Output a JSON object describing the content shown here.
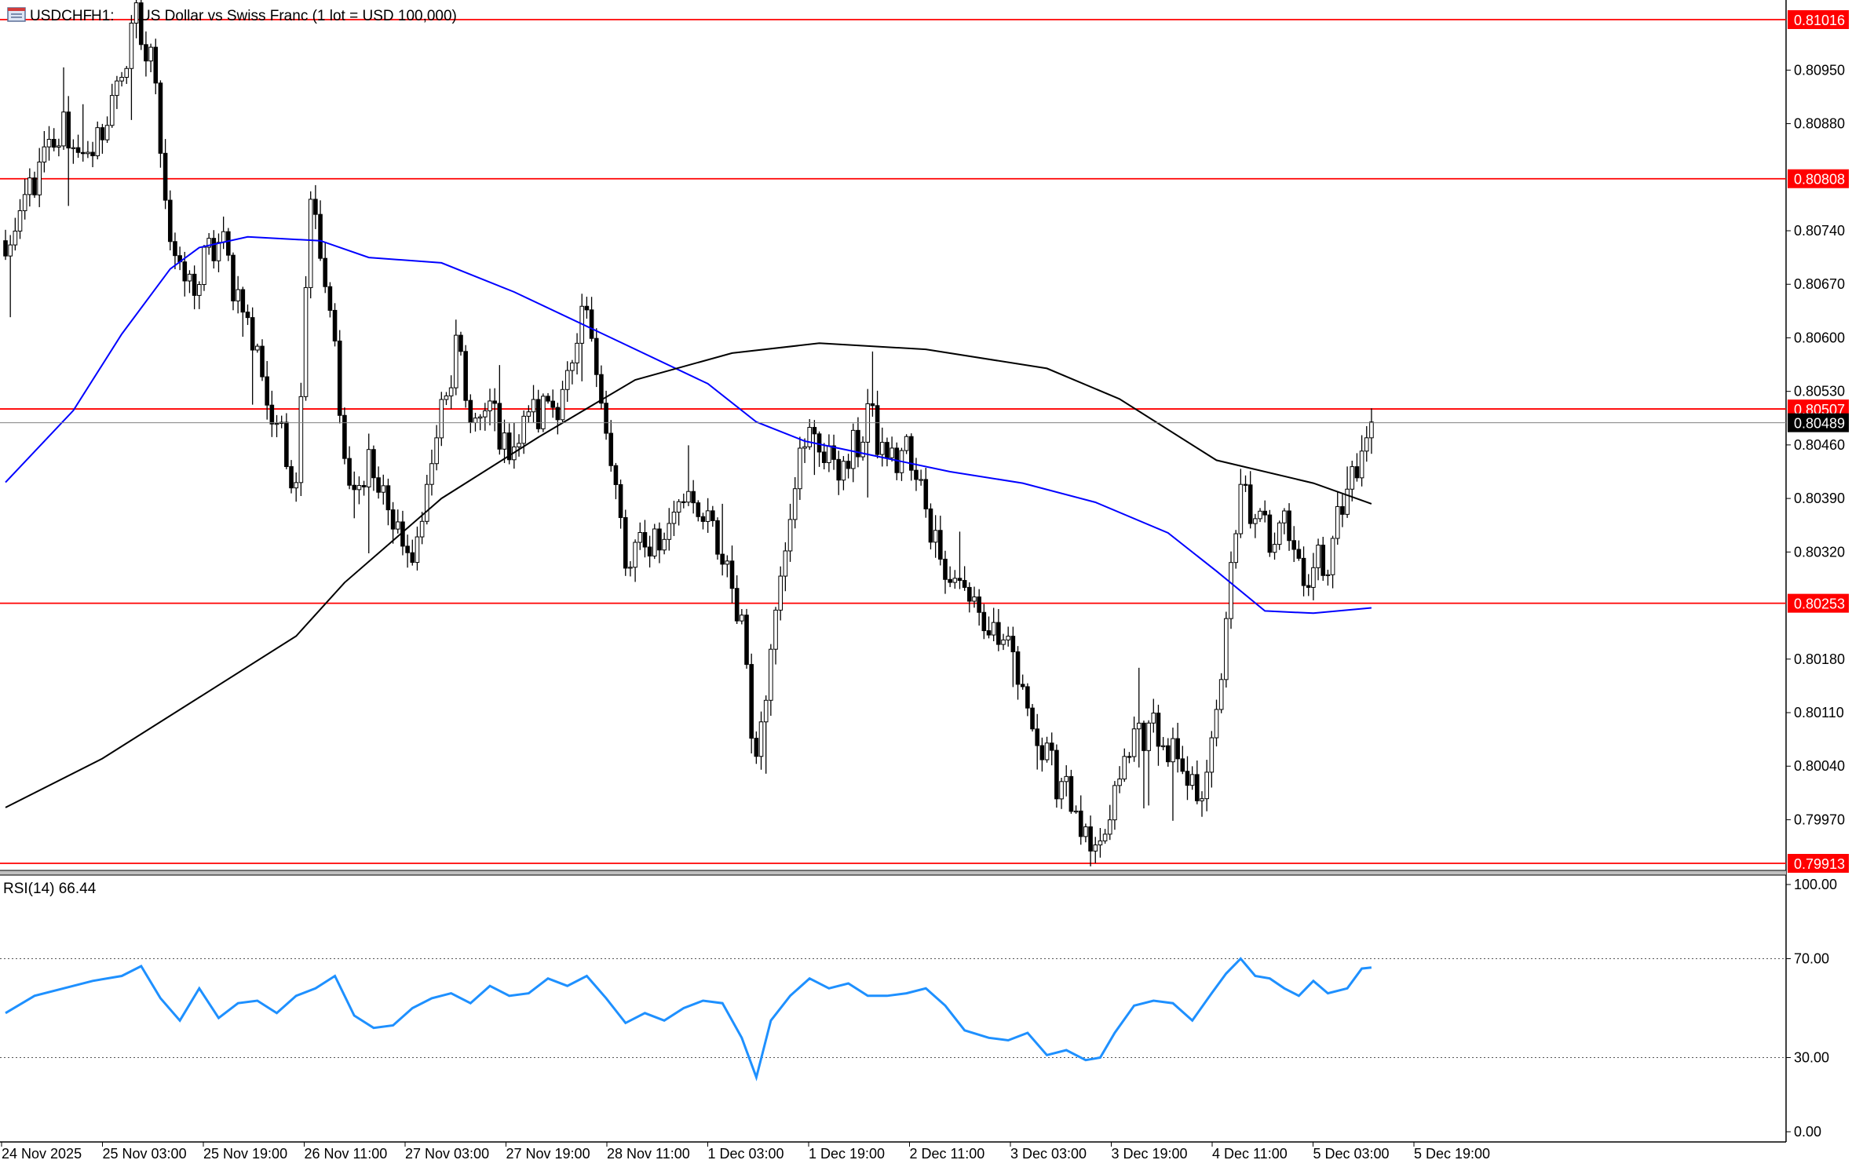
{
  "header": {
    "symbol": "USDCHF",
    "timeframe": "H1:",
    "description": "US Dollar vs Swiss Franc (1 lot = USD 100,000)"
  },
  "colors": {
    "background": "#ffffff",
    "bull_fill": "#ffffff",
    "bear_fill": "#000000",
    "candle_outline": "#000000",
    "ma_fast": "#0000ff",
    "ma_slow": "#000000",
    "level_line": "#ff0000",
    "level_label_bg": "#ff0000",
    "current_label_bg": "#000000",
    "rsi_line": "#1e90ff"
  },
  "icons": {
    "window": "chart-window-icon"
  },
  "chart_data": [
    {
      "type": "candlestick",
      "title": "USDCHF, H1:  US Dollar vs Swiss Franc (1 lot = USD 100,000)",
      "ylim": [
        0.7991,
        0.8103
      ],
      "y_ticks": [
        "0.80950",
        "0.80880",
        "0.80740",
        "0.80670",
        "0.80600",
        "0.80530",
        "0.80460",
        "0.80390",
        "0.80320",
        "0.80180",
        "0.80110",
        "0.80040",
        "0.79970"
      ],
      "x_ticks": [
        "24 Nov 2025",
        "25 Nov 03:00",
        "25 Nov 19:00",
        "26 Nov 11:00",
        "27 Nov 03:00",
        "27 Nov 19:00",
        "28 Nov 11:00",
        "1 Dec 03:00",
        "1 Dec 19:00",
        "2 Dec 11:00",
        "3 Dec 03:00",
        "3 Dec 19:00",
        "4 Dec 11:00",
        "5 Dec 03:00",
        "5 Dec 19:00"
      ],
      "horizontal_levels": [
        "0.81016",
        "0.80808",
        "0.80507",
        "0.80253",
        "0.79913"
      ],
      "current_price": "0.80489",
      "close_path": [
        [
          0,
          0.807
        ],
        [
          6,
          0.8081
        ],
        [
          12,
          0.8087
        ],
        [
          18,
          0.8083
        ],
        [
          24,
          0.8095
        ],
        [
          27,
          0.8101
        ],
        [
          31,
          0.8094
        ],
        [
          34,
          0.8072
        ],
        [
          38,
          0.8066
        ],
        [
          44,
          0.8073
        ],
        [
          48,
          0.8066
        ],
        [
          51,
          0.806
        ],
        [
          55,
          0.805
        ],
        [
          60,
          0.8041
        ],
        [
          63,
          0.808
        ],
        [
          67,
          0.8064
        ],
        [
          71,
          0.8038
        ],
        [
          75,
          0.8044
        ],
        [
          80,
          0.8036
        ],
        [
          84,
          0.803
        ],
        [
          88,
          0.8044
        ],
        [
          93,
          0.8058
        ],
        [
          97,
          0.8048
        ],
        [
          100,
          0.8051
        ],
        [
          104,
          0.8045
        ],
        [
          108,
          0.805
        ],
        [
          112,
          0.8051
        ],
        [
          116,
          0.8054
        ],
        [
          120,
          0.8063
        ],
        [
          124,
          0.8049
        ],
        [
          128,
          0.803
        ],
        [
          132,
          0.8033
        ],
        [
          136,
          0.8034
        ],
        [
          140,
          0.804
        ],
        [
          144,
          0.8038
        ],
        [
          148,
          0.803
        ],
        [
          152,
          0.8023
        ],
        [
          155,
          0.8004
        ],
        [
          158,
          0.802
        ],
        [
          162,
          0.8039
        ],
        [
          166,
          0.8048
        ],
        [
          170,
          0.8044
        ],
        [
          174,
          0.8043
        ],
        [
          178,
          0.805
        ],
        [
          182,
          0.8044
        ],
        [
          186,
          0.8045
        ],
        [
          190,
          0.8038
        ],
        [
          194,
          0.803
        ],
        [
          198,
          0.8027
        ],
        [
          203,
          0.8022
        ],
        [
          207,
          0.8019
        ],
        [
          211,
          0.8012
        ],
        [
          215,
          0.8004
        ],
        [
          219,
          0.8002
        ],
        [
          223,
          0.7993
        ],
        [
          226,
          0.7992
        ],
        [
          229,
          0.8
        ],
        [
          233,
          0.8008
        ],
        [
          237,
          0.8009
        ],
        [
          241,
          0.8005
        ],
        [
          245,
          0.8
        ],
        [
          249,
          0.8005
        ],
        [
          252,
          0.8023
        ],
        [
          255,
          0.804
        ],
        [
          258,
          0.8036
        ],
        [
          261,
          0.8034
        ],
        [
          264,
          0.8038
        ],
        [
          267,
          0.803
        ],
        [
          270,
          0.8029
        ],
        [
          273,
          0.8032
        ],
        [
          277,
          0.804
        ],
        [
          280,
          0.8045
        ],
        [
          282,
          0.8049
        ]
      ],
      "series": [
        {
          "name": "MA fast (blue)",
          "points": [
            [
              0,
              0.80411
            ],
            [
              14,
              0.80505
            ],
            [
              24,
              0.80605
            ],
            [
              34,
              0.8069
            ],
            [
              40,
              0.80718
            ],
            [
              50,
              0.80732
            ],
            [
              65,
              0.80727
            ],
            [
              75,
              0.80705
            ],
            [
              90,
              0.80698
            ],
            [
              105,
              0.8066
            ],
            [
              125,
              0.806
            ],
            [
              145,
              0.8054
            ],
            [
              155,
              0.8049
            ],
            [
              165,
              0.80465
            ],
            [
              180,
              0.80445
            ],
            [
              195,
              0.80425
            ],
            [
              210,
              0.8041
            ],
            [
              225,
              0.80385
            ],
            [
              240,
              0.80345
            ],
            [
              250,
              0.80295
            ],
            [
              260,
              0.80243
            ],
            [
              270,
              0.8024
            ],
            [
              282,
              0.80247
            ]
          ]
        },
        {
          "name": "MA slow (black)",
          "points": [
            [
              0,
              0.79986
            ],
            [
              20,
              0.8005
            ],
            [
              40,
              0.8013
            ],
            [
              60,
              0.8021
            ],
            [
              70,
              0.8028
            ],
            [
              90,
              0.8039
            ],
            [
              110,
              0.8047
            ],
            [
              130,
              0.80545
            ],
            [
              150,
              0.8058
            ],
            [
              168,
              0.80593
            ],
            [
              190,
              0.80585
            ],
            [
              215,
              0.8056
            ],
            [
              230,
              0.8052
            ],
            [
              250,
              0.8044
            ],
            [
              270,
              0.8041
            ],
            [
              282,
              0.80383
            ]
          ]
        }
      ]
    },
    {
      "type": "line",
      "title": "RSI(14) 66.44",
      "ylim": [
        0,
        100
      ],
      "y_ticks": [
        "100.00",
        "70.00",
        "30.00",
        "0.00"
      ],
      "levels": [
        70,
        30
      ],
      "series": [
        {
          "name": "",
          "points": [
            [
              0,
              48
            ],
            [
              6,
              55
            ],
            [
              12,
              58
            ],
            [
              18,
              61
            ],
            [
              24,
              63
            ],
            [
              28,
              67
            ],
            [
              32,
              54
            ],
            [
              36,
              45
            ],
            [
              40,
              58
            ],
            [
              44,
              46
            ],
            [
              48,
              52
            ],
            [
              52,
              53
            ],
            [
              56,
              48
            ],
            [
              60,
              55
            ],
            [
              64,
              58
            ],
            [
              68,
              63
            ],
            [
              72,
              47
            ],
            [
              76,
              42
            ],
            [
              80,
              43
            ],
            [
              84,
              50
            ],
            [
              88,
              54
            ],
            [
              92,
              56
            ],
            [
              96,
              52
            ],
            [
              100,
              59
            ],
            [
              104,
              55
            ],
            [
              108,
              56
            ],
            [
              112,
              62
            ],
            [
              116,
              59
            ],
            [
              120,
              63
            ],
            [
              124,
              54
            ],
            [
              128,
              44
            ],
            [
              132,
              48
            ],
            [
              136,
              45
            ],
            [
              140,
              50
            ],
            [
              144,
              53
            ],
            [
              148,
              52
            ],
            [
              152,
              38
            ],
            [
              155,
              22
            ],
            [
              158,
              45
            ],
            [
              162,
              55
            ],
            [
              166,
              62
            ],
            [
              170,
              58
            ],
            [
              174,
              60
            ],
            [
              178,
              55
            ],
            [
              182,
              55
            ],
            [
              186,
              56
            ],
            [
              190,
              58
            ],
            [
              194,
              51
            ],
            [
              198,
              41
            ],
            [
              203,
              38
            ],
            [
              207,
              37
            ],
            [
              211,
              40
            ],
            [
              215,
              31
            ],
            [
              219,
              33
            ],
            [
              223,
              29
            ],
            [
              226,
              30
            ],
            [
              229,
              40
            ],
            [
              233,
              51
            ],
            [
              237,
              53
            ],
            [
              241,
              52
            ],
            [
              245,
              45
            ],
            [
              249,
              56
            ],
            [
              252,
              64
            ],
            [
              255,
              70
            ],
            [
              258,
              63
            ],
            [
              261,
              62
            ],
            [
              264,
              58
            ],
            [
              267,
              55
            ],
            [
              270,
              61
            ],
            [
              273,
              56
            ],
            [
              277,
              58
            ],
            [
              280,
              66
            ],
            [
              282,
              66.44
            ]
          ]
        }
      ]
    }
  ]
}
